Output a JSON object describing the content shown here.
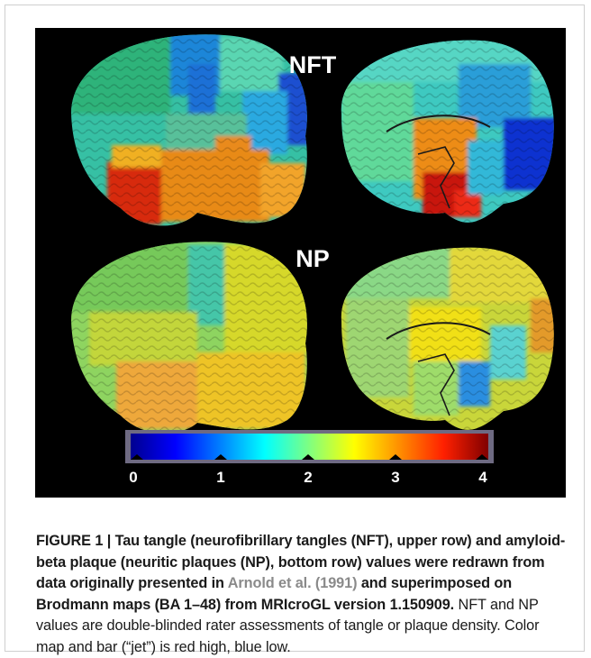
{
  "figure": {
    "row_labels": [
      "NFT",
      "NP"
    ],
    "colorbar": {
      "colormap": "jet",
      "ticks": [
        "0",
        "1",
        "2",
        "3",
        "4"
      ],
      "colors": [
        "#00008f",
        "#0000ff",
        "#0080ff",
        "#00ffff",
        "#80ff80",
        "#ffff00",
        "#ff8000",
        "#ff0000",
        "#800000"
      ]
    }
  },
  "caption": {
    "label": "FIGURE 1 | ",
    "bold_part1": "Tau tangle (neurofibrillary tangles (NFT), upper row) and amyloid-beta plaque (neuritic plaques (NP), bottom row) values were redrawn from data originally presented in ",
    "reference": "Arnold et al. (1991)",
    "bold_part2": " and superimposed on Brodmann maps (BA 1–48) from MRIcroGL version 1.150909.",
    "normal_part": " NFT and NP values are double-blinded rater assessments of tangle or plaque density. Color map and bar (“jet”) is red high, blue low."
  }
}
